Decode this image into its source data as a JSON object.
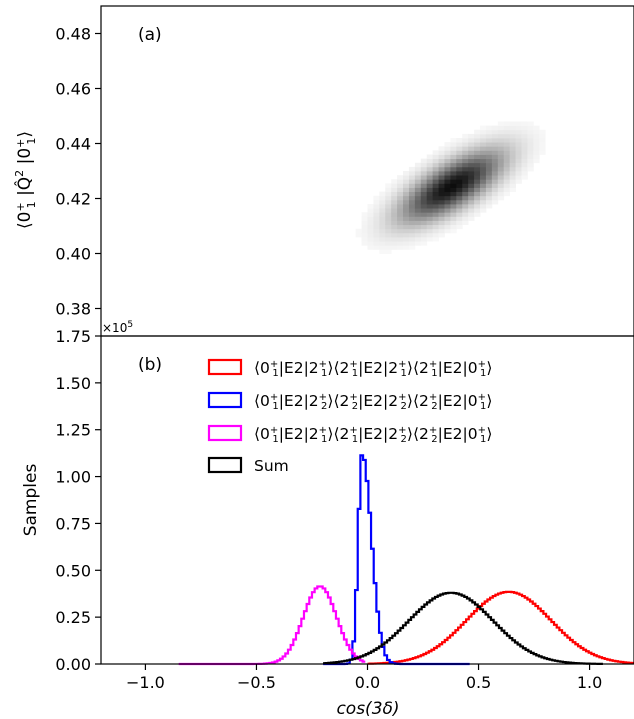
{
  "chart_data": [
    {
      "type": "heatmap",
      "panel_label": "(a)",
      "ylabel_parts": [
        "⟨",
        "0",
        "+",
        "1",
        " |",
        "Q̂",
        "2",
        " |",
        "0",
        "+",
        "1",
        "⟩"
      ],
      "ylim": [
        0.37,
        0.49
      ],
      "yticks": [
        "0.38",
        "0.40",
        "0.42",
        "0.44",
        "0.46",
        "0.48"
      ],
      "ytick_values": [
        0.38,
        0.4,
        0.42,
        0.44,
        0.46,
        0.48
      ],
      "density": {
        "center_x": 0.38,
        "center_y": 0.4245,
        "sigma_x": 0.16,
        "sigma_y": 0.009,
        "correlation": 0.72,
        "cmap": "Greys"
      },
      "grid": false
    },
    {
      "type": "line",
      "panel_label": "(b)",
      "xlabel": "cos(3δ)",
      "ylabel": "Samples",
      "offset_text": "×10",
      "offset_exp": "5",
      "xlim": [
        -1.2,
        1.2
      ],
      "ylim": [
        0,
        1.75
      ],
      "xticks": [
        "−1.0",
        "−0.5",
        "0.0",
        "0.5",
        "1.0"
      ],
      "xtick_values": [
        -1.0,
        -0.5,
        0.0,
        0.5,
        1.0
      ],
      "yticks": [
        "0.00",
        "0.25",
        "0.50",
        "0.75",
        "1.00",
        "1.25",
        "1.50",
        "1.75"
      ],
      "ytick_values": [
        0.0,
        0.25,
        0.5,
        0.75,
        1.0,
        1.25,
        1.5,
        1.75
      ],
      "legend_position": "top-right",
      "grid": false,
      "series": [
        {
          "legend": [
            [
              "⟨0",
              "+",
              "1",
              "|E2|2",
              "+",
              "1",
              "⟩⟨2",
              "+",
              "1",
              "|E2|2",
              "+",
              "1",
              "⟩⟨2",
              "+",
              "1",
              "|E2|0",
              "+",
              "1",
              "⟩"
            ]
          ],
          "color": "#ff0000",
          "mean": 0.63,
          "sd": 0.19,
          "peak": 0.385,
          "range": [
            0.0,
            1.2
          ]
        },
        {
          "legend": [
            [
              "⟨0",
              "+",
              "1",
              "|E2|2",
              "+",
              "2",
              "⟩⟨2",
              "+",
              "2",
              "|E2|2",
              "+",
              "2",
              "⟩⟨2",
              "+",
              "2",
              "|E2|0",
              "+",
              "1",
              "⟩"
            ]
          ],
          "color": "#0000ff",
          "mean": -0.03,
          "sd_left": 0.018,
          "sd_right": 0.042,
          "peak": 1.12,
          "range": [
            -0.2,
            0.45
          ]
        },
        {
          "legend": [
            [
              "⟨0",
              "+",
              "1",
              "|E2|2",
              "+",
              "1",
              "⟩⟨2",
              "+",
              "1",
              "|E2|2",
              "+",
              "2",
              "⟩⟨2",
              "+",
              "2",
              "|E2|0",
              "+",
              "1",
              "⟩"
            ]
          ],
          "color": "#ff00ff",
          "mean": -0.22,
          "sd": 0.075,
          "peak": 0.415,
          "range": [
            -0.85,
            -0.02
          ]
        },
        {
          "name": "Sum",
          "color": "#000000",
          "mean": 0.37,
          "sd": 0.19,
          "peak": 0.38,
          "range": [
            -0.2,
            1.05
          ]
        }
      ]
    }
  ]
}
